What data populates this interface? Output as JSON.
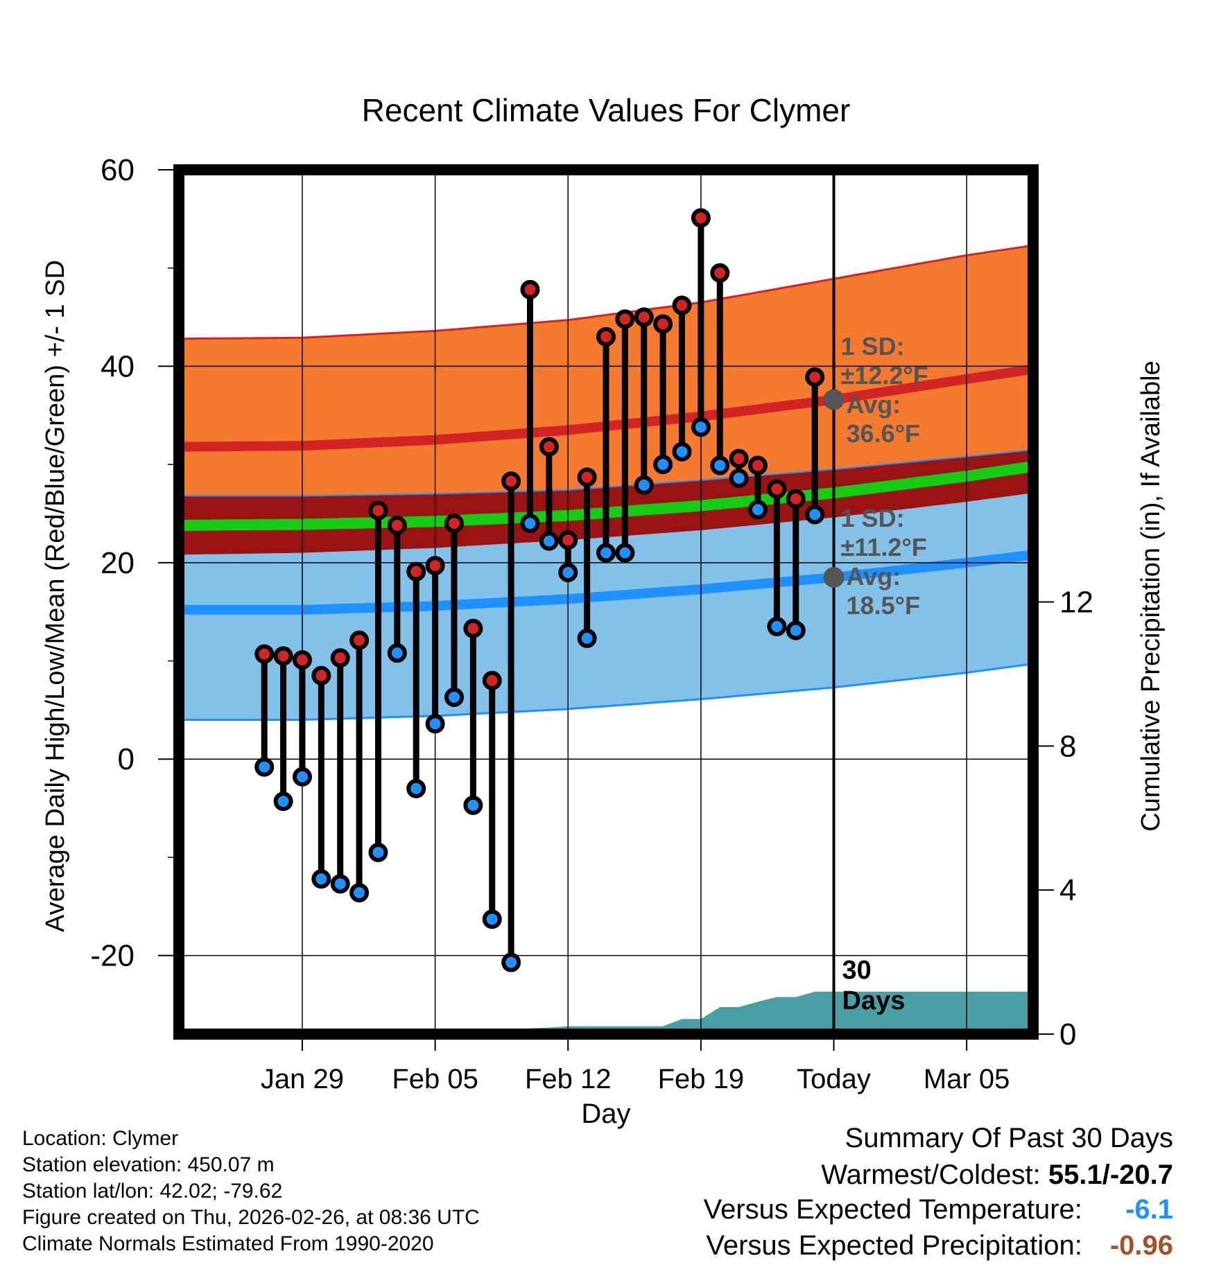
{
  "chart_data": {
    "type": "climate-range",
    "title": "Recent Climate Values For Clymer",
    "xlabel": "Day",
    "ylabel_left": "Average Daily High/Low/Mean (Red/Blue/Green) +/- 1 SD",
    "ylabel_right": "Cumulative Precipitation (in), If Available",
    "ylim_left": [
      -28,
      60
    ],
    "yticks_left": [
      -20,
      0,
      20,
      40,
      60
    ],
    "ylim_right": [
      0,
      24
    ],
    "yticks_right": [
      0,
      4,
      8,
      12
    ],
    "x_range_days": [
      -34.5,
      10.5
    ],
    "x_ticks": [
      {
        "day": -28,
        "label": "Jan 29"
      },
      {
        "day": -21,
        "label": "Feb 05"
      },
      {
        "day": -14,
        "label": "Feb 12"
      },
      {
        "day": -7,
        "label": "Feb 19"
      },
      {
        "day": 0,
        "label": "Today"
      },
      {
        "day": 7,
        "label": "Mar 05"
      }
    ],
    "normals": {
      "days": [
        -34.5,
        -28,
        -21,
        -14,
        -7,
        0,
        7,
        10.5
      ],
      "high_plus_sd": [
        42.8,
        42.9,
        43.6,
        44.7,
        46.5,
        48.9,
        51.3,
        52.3
      ],
      "high_avg": [
        31.8,
        31.9,
        32.5,
        33.5,
        34.9,
        36.6,
        38.7,
        39.7
      ],
      "high_minus_sd": [
        26.8,
        26.8,
        27.0,
        27.4,
        28.4,
        29.5,
        30.8,
        31.5
      ],
      "mean_upper": [
        26.8,
        26.8,
        27.0,
        27.4,
        28.4,
        29.5,
        30.8,
        31.5
      ],
      "mean": [
        23.8,
        23.9,
        24.2,
        24.8,
        25.8,
        27.1,
        28.8,
        29.8
      ],
      "mean_lower": [
        20.8,
        21.0,
        21.5,
        22.3,
        23.3,
        24.6,
        26.2,
        27.1
      ],
      "low_avg": [
        15.2,
        15.2,
        15.6,
        16.3,
        17.3,
        18.5,
        20.0,
        20.8
      ],
      "low_minus_sd": [
        4.0,
        4.0,
        4.4,
        5.1,
        6.1,
        7.3,
        8.8,
        9.7
      ]
    },
    "daily": [
      {
        "day": -30,
        "high": 10.7,
        "low": -0.8
      },
      {
        "day": -29,
        "high": 10.5,
        "low": -4.3
      },
      {
        "day": -28,
        "high": 10.1,
        "low": -1.8
      },
      {
        "day": -27,
        "high": 8.5,
        "low": -12.2
      },
      {
        "day": -26,
        "high": 10.3,
        "low": -12.7
      },
      {
        "day": -25,
        "high": 12.1,
        "low": -13.6
      },
      {
        "day": -24,
        "high": 25.3,
        "low": -9.5
      },
      {
        "day": -23,
        "high": 23.8,
        "low": 10.8
      },
      {
        "day": -22,
        "high": 19.1,
        "low": -3.0
      },
      {
        "day": -21,
        "high": 19.7,
        "low": 3.6
      },
      {
        "day": -20,
        "high": 24.0,
        "low": 6.3
      },
      {
        "day": -19,
        "high": 13.3,
        "low": -4.7
      },
      {
        "day": -18,
        "high": 8.0,
        "low": -16.3
      },
      {
        "day": -17,
        "high": 28.3,
        "low": -20.7
      },
      {
        "day": -16,
        "high": 47.8,
        "low": 24.0
      },
      {
        "day": -15,
        "high": 31.8,
        "low": 22.2
      },
      {
        "day": -14,
        "high": 22.3,
        "low": 19.0
      },
      {
        "day": -13,
        "high": 28.7,
        "low": 12.3
      },
      {
        "day": -12,
        "high": 43.0,
        "low": 21.0
      },
      {
        "day": -11,
        "high": 44.8,
        "low": 21.0
      },
      {
        "day": -10,
        "high": 45.0,
        "low": 27.9
      },
      {
        "day": -9,
        "high": 44.3,
        "low": 30.0
      },
      {
        "day": -8,
        "high": 46.2,
        "low": 31.3
      },
      {
        "day": -7,
        "high": 55.1,
        "low": 33.8
      },
      {
        "day": -6,
        "high": 49.5,
        "low": 29.9
      },
      {
        "day": -5,
        "high": 30.6,
        "low": 28.6
      },
      {
        "day": -4,
        "high": 29.9,
        "low": 25.4
      },
      {
        "day": -3,
        "high": 27.5,
        "low": 13.5
      },
      {
        "day": -2,
        "high": 26.5,
        "low": 13.1
      },
      {
        "day": -1,
        "high": 38.9,
        "low": 24.9
      }
    ],
    "precip_cumulative": {
      "days": [
        -21,
        -20,
        -18,
        -15,
        -14,
        -12,
        -10,
        -9,
        -8,
        -7,
        -6,
        -5,
        -4,
        -3,
        -2,
        -1,
        0,
        10.5
      ],
      "values": [
        0.0,
        0.12,
        0.12,
        0.18,
        0.22,
        0.22,
        0.22,
        0.22,
        0.42,
        0.42,
        0.75,
        0.75,
        0.9,
        1.03,
        1.03,
        1.18,
        1.18,
        1.18
      ]
    },
    "sd_high_label": {
      "line1": "1 SD:",
      "line2": "±12.2°F",
      "line3": "Avg:",
      "line4": "36.6°F"
    },
    "sd_low_label": {
      "line1": "1 SD:",
      "line2": "±11.2°F",
      "line3": "Avg:",
      "line4": "18.5°F"
    },
    "window_label": {
      "line1": "30",
      "line2": "Days"
    },
    "colors": {
      "high_band": "#f47a2f",
      "high_line": "#d22424",
      "mean_band": "#9a1313",
      "mean_line": "#14cc14",
      "low_band": "#84c1e8",
      "low_line": "#1e90ff",
      "precip": "#4a9fa5",
      "marker_high": "#d22424",
      "marker_low": "#1e90ff",
      "annotation": "#555555"
    }
  },
  "info": {
    "location": "Location: Clymer",
    "elevation": "Station elevation: 450.07 m",
    "latlon": "Station lat/lon: 42.02; -79.62",
    "created": "Figure created on Thu, 2026-02-26, at 08:36 UTC",
    "normals": "Climate Normals Estimated From 1990-2020"
  },
  "summary": {
    "heading": "Summary Of Past 30 Days",
    "warmest_label": "Warmest/Coldest:",
    "warmest_value": "55.1/-20.7",
    "temp_label": "Versus Expected Temperature:",
    "temp_value": "-6.1",
    "temp_color": "#1e90ff",
    "precip_label": "Versus Expected Precipitation:",
    "precip_value": "-0.96",
    "precip_color": "#a0522d"
  }
}
